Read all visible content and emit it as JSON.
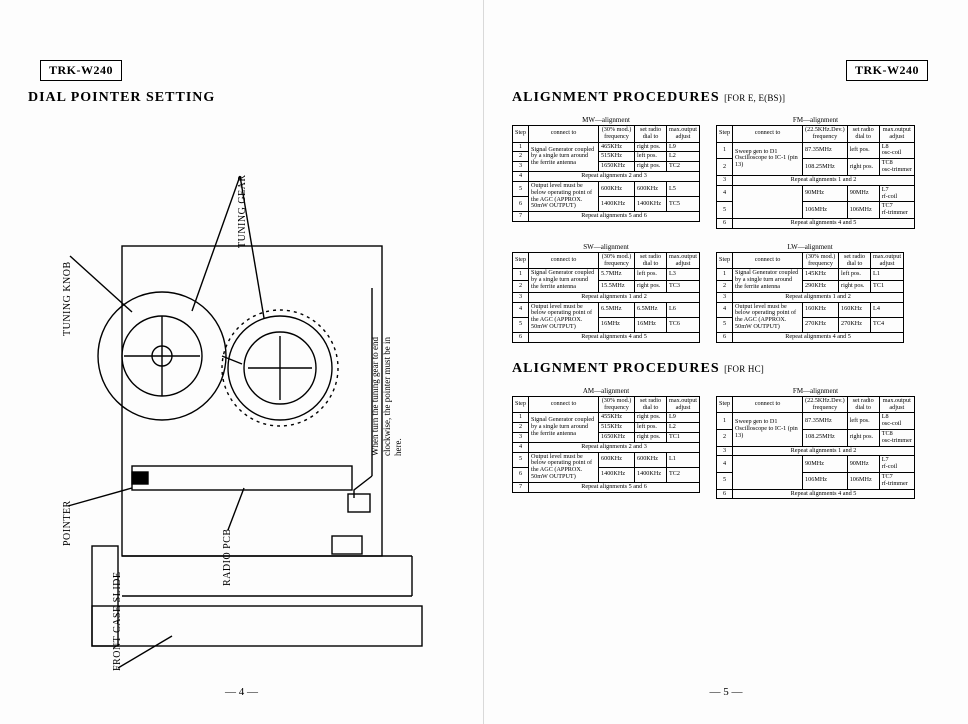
{
  "model": "TRK-W240",
  "left": {
    "heading": "DIAL POINTER SETTING",
    "labels": {
      "tuning_knob": "TUNING KNOB",
      "tuning_gear": "TUNING GEAR",
      "pointer": "POINTER",
      "radio_pcb": "RADIO PCB",
      "front_case_slide": "FRONT CASE SLIDE"
    },
    "note": "When turn the tuning gear to end\nclockwise, the pointer must be in\nhere.",
    "page_num": "— 4 —"
  },
  "right": {
    "heading1": "ALIGNMENT PROCEDURES",
    "heading1_sub": "[FOR E, E(BS)]",
    "heading2": "ALIGNMENT PROCEDURES",
    "heading2_sub": "[FOR HC]",
    "page_num": "— 5 —",
    "header_labels": {
      "step": "Step",
      "connect": "connect to",
      "mod30": "(30% mod.)\nfrequency",
      "mod225": "(22.5KHz.Dev.)\nfrequency",
      "dial": "set radio\ndial to",
      "adjust": "max.output\nadjust"
    },
    "tables": {
      "mw": {
        "title": "MW—alignment",
        "mod_header": "mod30",
        "rows": [
          {
            "step": "1",
            "connect": "Signal Generator coupled by a single turn around the ferrite antenna",
            "freq": "465KHz",
            "dial": "right pos.",
            "adj": "L9",
            "span": 3
          },
          {
            "step": "2",
            "freq": "515KHz",
            "dial": "left pos.",
            "adj": "L2"
          },
          {
            "step": "3",
            "freq": "1650KHz",
            "dial": "right pos.",
            "adj": "TC2"
          },
          {
            "step": "4",
            "full": "Repeat alignments 2 and 3"
          },
          {
            "step": "5",
            "connect": "Output level must be below operating point of the AGC (APPROX. 50mW OUTPUT)",
            "freq": "600KHz",
            "dial": "600KHz",
            "adj": "L5",
            "span": 2
          },
          {
            "step": "6",
            "freq": "1400KHz",
            "dial": "1400KHz",
            "adj": "TC5"
          },
          {
            "step": "7",
            "full": "Repeat alignments 5 and 6"
          }
        ]
      },
      "fm1": {
        "title": "FM—alignment",
        "mod_header": "mod225",
        "rows": [
          {
            "step": "1",
            "connect": "Sweep gen to D1 Oscilloscope to IC-1 (pin 13)",
            "freq": "87.35MHz",
            "dial": "left pos.",
            "adj": "L8\nosc-coil",
            "span": 2
          },
          {
            "step": "2",
            "freq": "108.25MHz",
            "dial": "right pos.",
            "adj": "TC8\nosc-trimmer"
          },
          {
            "step": "3",
            "full": "Repeat alignments 1 and 2"
          },
          {
            "step": "4",
            "connect": "",
            "freq": "90MHz",
            "dial": "90MHz",
            "adj": "L7\nrf-coil",
            "span": 2
          },
          {
            "step": "5",
            "freq": "106MHz",
            "dial": "106MHz",
            "adj": "TC7\nrf-trimmer"
          },
          {
            "step": "6",
            "full": "Repeat alignments 4 and 5"
          }
        ]
      },
      "sw": {
        "title": "SW—alignment",
        "mod_header": "mod30",
        "rows": [
          {
            "step": "1",
            "connect": "Signal Generator coupled by a single turn around the ferrite antenna",
            "freq": "5.7MHz",
            "dial": "left pos.",
            "adj": "L3",
            "span": 2
          },
          {
            "step": "2",
            "freq": "15.5MHz",
            "dial": "right pos.",
            "adj": "TC3"
          },
          {
            "step": "3",
            "full": "Repeat alignments 1 and 2"
          },
          {
            "step": "4",
            "connect": "Output level must be below operating point of the AGC (APPROX. 50mW OUTPUT)",
            "freq": "6.5MHz",
            "dial": "6.5MHz",
            "adj": "L6",
            "span": 2
          },
          {
            "step": "5",
            "freq": "16MHz",
            "dial": "16MHz",
            "adj": "TC6"
          },
          {
            "step": "6",
            "full": "Repeat alignments 4 and 5"
          }
        ]
      },
      "lw": {
        "title": "LW—alignment",
        "mod_header": "mod30",
        "rows": [
          {
            "step": "1",
            "connect": "Signal Generator coupled by a single turn around the ferrite antenna",
            "freq": "145KHz",
            "dial": "left pos.",
            "adj": "L1",
            "span": 2
          },
          {
            "step": "2",
            "freq": "290KHz",
            "dial": "right pos.",
            "adj": "TC1"
          },
          {
            "step": "3",
            "full": "Repeat alignments 1 and 2"
          },
          {
            "step": "4",
            "connect": "Output level must be below operating point of the AGC (APPROX. 50mW OUTPUT)",
            "freq": "160KHz",
            "dial": "160KHz",
            "adj": "L4",
            "span": 2
          },
          {
            "step": "5",
            "freq": "270KHz",
            "dial": "270KHz",
            "adj": "TC4"
          },
          {
            "step": "6",
            "full": "Repeat alignments 4 and 5"
          }
        ]
      },
      "am": {
        "title": "AM—alignment",
        "mod_header": "mod30",
        "rows": [
          {
            "step": "1",
            "connect": "Signal Generator coupled by a single turn around the ferrite antenna",
            "freq": "455KHz",
            "dial": "right pos.",
            "adj": "L9",
            "span": 3
          },
          {
            "step": "2",
            "freq": "515KHz",
            "dial": "left pos.",
            "adj": "L2"
          },
          {
            "step": "3",
            "freq": "1650KHz",
            "dial": "right pos.",
            "adj": "TC1"
          },
          {
            "step": "4",
            "full": "Repeat alignments 2 and 3"
          },
          {
            "step": "5",
            "connect": "Output level must be below operating point of the AGC (APPROX. 50mW OUTPUT)",
            "freq": "600KHz",
            "dial": "600KHz",
            "adj": "L1",
            "span": 2
          },
          {
            "step": "6",
            "freq": "1400KHz",
            "dial": "1400KHz",
            "adj": "TC2"
          },
          {
            "step": "7",
            "full": "Repeat alignments 5 and 6"
          }
        ]
      },
      "fm2": {
        "title": "FM—alignment",
        "mod_header": "mod225",
        "rows": [
          {
            "step": "1",
            "connect": "Sweep gen to D1 Oscilloscope to IC-1 (pin 13)",
            "freq": "87.35MHz",
            "dial": "left pos.",
            "adj": "L8\nosc-coil",
            "span": 2
          },
          {
            "step": "2",
            "freq": "108.25MHz",
            "dial": "right pos.",
            "adj": "TC8\nosc-trimmer"
          },
          {
            "step": "3",
            "full": "Repeat alignments 1 and 2"
          },
          {
            "step": "4",
            "connect": "",
            "freq": "90MHz",
            "dial": "90MHz",
            "adj": "L7\nrf-coil",
            "span": 2
          },
          {
            "step": "5",
            "freq": "106MHz",
            "dial": "106MHz",
            "adj": "TC7\nrf-trimmer"
          },
          {
            "step": "6",
            "full": "Repeat alignments 4 and 5"
          }
        ]
      }
    }
  },
  "colors": {
    "ink": "#000000",
    "paper": "#fdfdfd",
    "gutter": "#d9d9d9"
  }
}
